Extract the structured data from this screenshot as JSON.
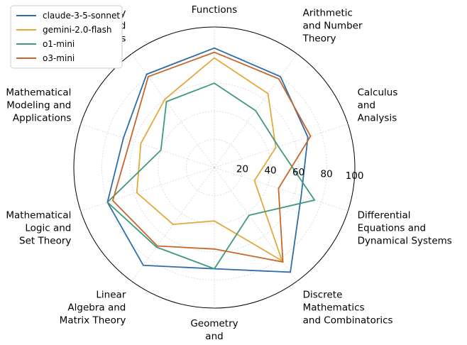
{
  "chart_data": {
    "type": "radar",
    "title": "",
    "categories": [
      "Algebra\nand\nFunctions",
      "Arithmetic\nand Number\nTheory",
      "Calculus\nand\nAnalysis",
      "Differential\nEquations and\nDynamical Systems",
      "Discrete\nMathematics\nand Combinatorics",
      "Geometry\nand\nSpatial Reasoning",
      "Linear\nAlgebra and\nMatrix Theory",
      "Mathematical\nLogic and\nSet Theory",
      "Mathematical\nModeling and\nApplications",
      "Probability\nand\nStatistics"
    ],
    "rlim": [
      0,
      100
    ],
    "rticks": [
      20,
      40,
      60,
      80,
      100
    ],
    "grid": true,
    "legend_position": "top-left",
    "series": [
      {
        "name": "claude-3-5-sonnet",
        "color": "#2e6ea8",
        "values": [
          85,
          80,
          70,
          65,
          92,
          72,
          86,
          80,
          68,
          82
        ]
      },
      {
        "name": "gemini-2.0-flash",
        "color": "#e3a93a",
        "values": [
          78,
          65,
          46,
          30,
          82,
          38,
          50,
          58,
          55,
          60
        ]
      },
      {
        "name": "o1-mini",
        "color": "#3e9a7a",
        "values": [
          60,
          50,
          48,
          75,
          42,
          72,
          70,
          80,
          40,
          58
        ]
      },
      {
        "name": "o3-mini",
        "color": "#c8662a",
        "values": [
          82,
          78,
          72,
          48,
          83,
          58,
          69,
          76,
          63,
          80
        ]
      }
    ]
  }
}
